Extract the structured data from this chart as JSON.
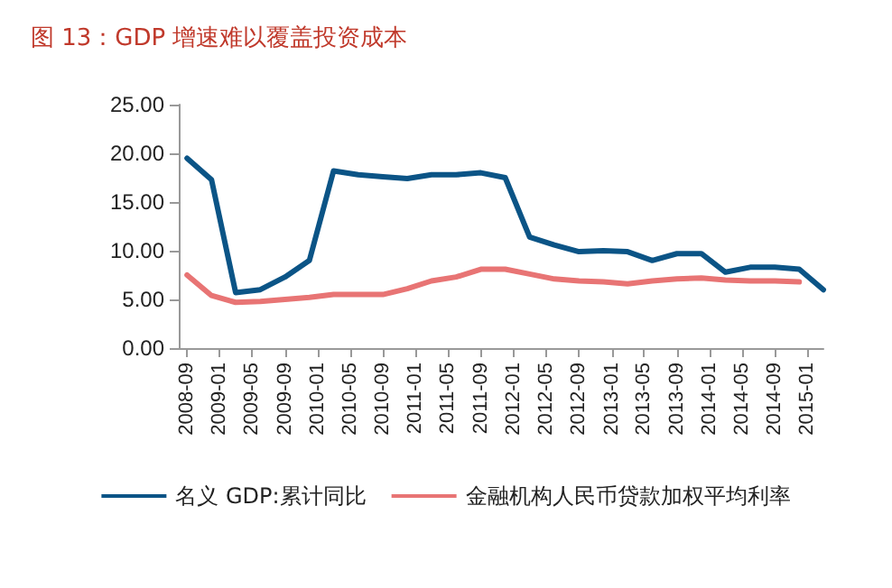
{
  "chart_data": {
    "type": "line",
    "title": "图 13：GDP 增速难以覆盖投资成本",
    "x": [
      "2008-09",
      "2008-12",
      "2009-03",
      "2009-06",
      "2009-09",
      "2009-12",
      "2010-03",
      "2010-06",
      "2010-09",
      "2010-12",
      "2011-03",
      "2011-06",
      "2011-09",
      "2011-12",
      "2012-03",
      "2012-06",
      "2012-09",
      "2012-12",
      "2013-03",
      "2013-06",
      "2013-09",
      "2013-12",
      "2014-03",
      "2014-06",
      "2014-09",
      "2014-12",
      "2015-03"
    ],
    "series": [
      {
        "name": "名义 GDP:累计同比",
        "color": "#0b5486",
        "values": [
          19.5,
          17.3,
          5.7,
          6.0,
          7.3,
          9.0,
          18.2,
          17.8,
          17.6,
          17.4,
          17.8,
          17.8,
          18.0,
          17.5,
          11.4,
          10.6,
          9.9,
          10.0,
          9.9,
          9.0,
          9.7,
          9.7,
          7.8,
          8.3,
          8.3,
          8.1,
          6.0
        ]
      },
      {
        "name": "金融机构人民币贷款加权平均利率",
        "color": "#e87474",
        "values": [
          7.5,
          5.4,
          4.7,
          4.8,
          5.0,
          5.2,
          5.5,
          5.5,
          5.5,
          6.1,
          6.9,
          7.3,
          8.1,
          8.1,
          7.6,
          7.1,
          6.9,
          6.8,
          6.6,
          6.9,
          7.1,
          7.2,
          7.0,
          6.9,
          6.9,
          6.8,
          null
        ]
      }
    ],
    "xlim": [
      "2008-08",
      "2015-03"
    ],
    "xticks": [
      "2008-09",
      "2009-01",
      "2009-05",
      "2009-09",
      "2010-01",
      "2010-05",
      "2010-09",
      "2011-01",
      "2011-05",
      "2011-09",
      "2012-01",
      "2012-05",
      "2012-09",
      "2013-01",
      "2013-05",
      "2013-09",
      "2014-01",
      "2014-05",
      "2014-09",
      "2015-01"
    ],
    "ylim": [
      0,
      25
    ],
    "yticks": [
      {
        "value": 0,
        "label": "0.00"
      },
      {
        "value": 5,
        "label": "5.00"
      },
      {
        "value": 10,
        "label": "10.00"
      },
      {
        "value": 15,
        "label": "15.00"
      },
      {
        "value": 20,
        "label": "20.00"
      },
      {
        "value": 25,
        "label": "25.00"
      }
    ],
    "grid": false,
    "legend": "bottom",
    "marker": "none",
    "line_style": "solid"
  }
}
